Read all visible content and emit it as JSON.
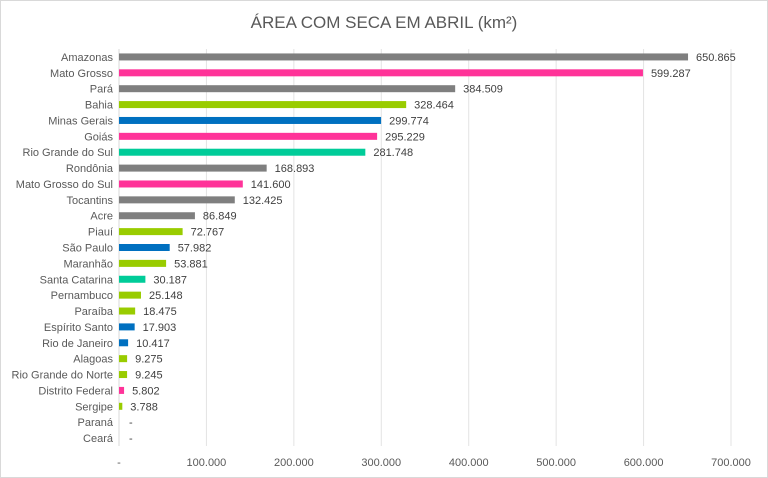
{
  "chart_data": {
    "type": "bar",
    "orientation": "horizontal",
    "title": "ÁREA COM SECA EM ABRIL (km²)",
    "xlabel": "",
    "ylabel": "",
    "xlim": [
      0,
      700000
    ],
    "grid": "vertical",
    "legend": "none",
    "x_ticks": [
      0,
      100000,
      200000,
      300000,
      400000,
      500000,
      600000,
      700000
    ],
    "x_tick_labels": [
      "-",
      "100.000",
      "200.000",
      "300.000",
      "400.000",
      "500.000",
      "600.000",
      "700.000"
    ],
    "categories": [
      "Amazonas",
      "Mato Grosso",
      "Pará",
      "Bahia",
      "Minas Gerais",
      "Goiás",
      "Rio Grande do Sul",
      "Rondônia",
      "Mato Grosso do Sul",
      "Tocantins",
      "Acre",
      "Piauí",
      "São Paulo",
      "Maranhão",
      "Santa Catarina",
      "Pernambuco",
      "Paraíba",
      "Espírito Santo",
      "Rio de Janeiro",
      "Alagoas",
      "Rio Grande do Norte",
      "Distrito Federal",
      "Sergipe",
      "Paraná",
      "Ceará"
    ],
    "values": [
      650865,
      599287,
      384509,
      328464,
      299774,
      295229,
      281748,
      168893,
      141600,
      132425,
      86849,
      72767,
      57982,
      53881,
      30187,
      25148,
      18475,
      17903,
      10417,
      9275,
      9245,
      5802,
      3788,
      0,
      0
    ],
    "value_labels": [
      "650.865",
      "599.287",
      "384.509",
      "328.464",
      "299.774",
      "295.229",
      "281.748",
      "168.893",
      "141.600",
      "132.425",
      "86.849",
      "72.767",
      "57.982",
      "53.881",
      "30.187",
      "25.148",
      "18.475",
      "17.903",
      "10.417",
      "9.275",
      "9.245",
      "5.802",
      "3.788",
      "-",
      "-"
    ],
    "bar_colors": [
      "#7f7f7f",
      "#ff3399",
      "#7f7f7f",
      "#99cc00",
      "#0070c0",
      "#ff3399",
      "#00cc99",
      "#7f7f7f",
      "#ff3399",
      "#7f7f7f",
      "#7f7f7f",
      "#99cc00",
      "#0070c0",
      "#99cc00",
      "#00cc99",
      "#99cc00",
      "#99cc00",
      "#0070c0",
      "#0070c0",
      "#99cc00",
      "#99cc00",
      "#ff3399",
      "#99cc00",
      "#99cc00",
      "#99cc00"
    ]
  }
}
